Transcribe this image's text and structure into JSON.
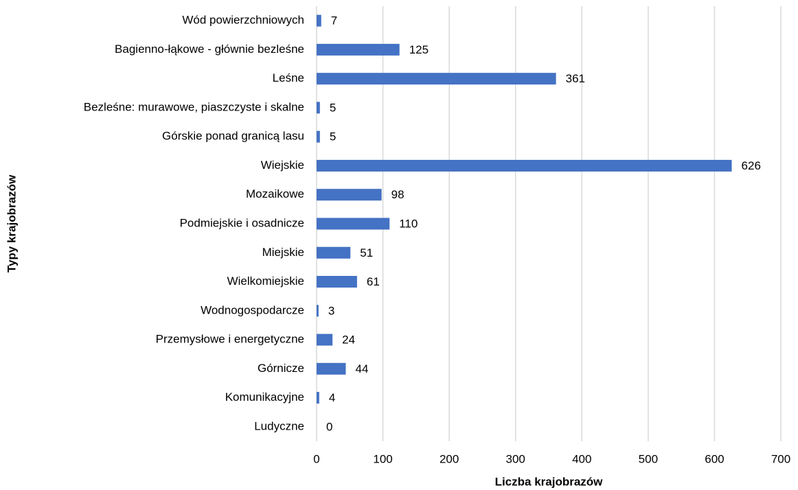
{
  "chart_data": {
    "type": "bar",
    "orientation": "horizontal",
    "xlabel": "Liczba krajobrazów",
    "ylabel": "Typy krajobrazów",
    "categories": [
      "Wód powierzchniowych",
      "Bagienno-łąkowe - głównie bezleśne",
      "Leśne",
      "Bezleśne: murawowe, piaszczyste i skalne",
      "Górskie ponad granicą lasu",
      "Wiejskie",
      "Mozaikowe",
      "Podmiejskie i osadnicze",
      "Miejskie",
      "Wielkomiejskie",
      "Wodnogospodarcze",
      "Przemysłowe i energetyczne",
      "Górnicze",
      "Komunikacyjne",
      "Ludyczne"
    ],
    "values": [
      7,
      125,
      361,
      5,
      5,
      626,
      98,
      110,
      51,
      61,
      3,
      24,
      44,
      4,
      0
    ],
    "color": "#4472c4",
    "xlim": [
      0,
      700
    ],
    "xticks": [
      0,
      100,
      200,
      300,
      400,
      500,
      600,
      700
    ],
    "grid": true
  }
}
